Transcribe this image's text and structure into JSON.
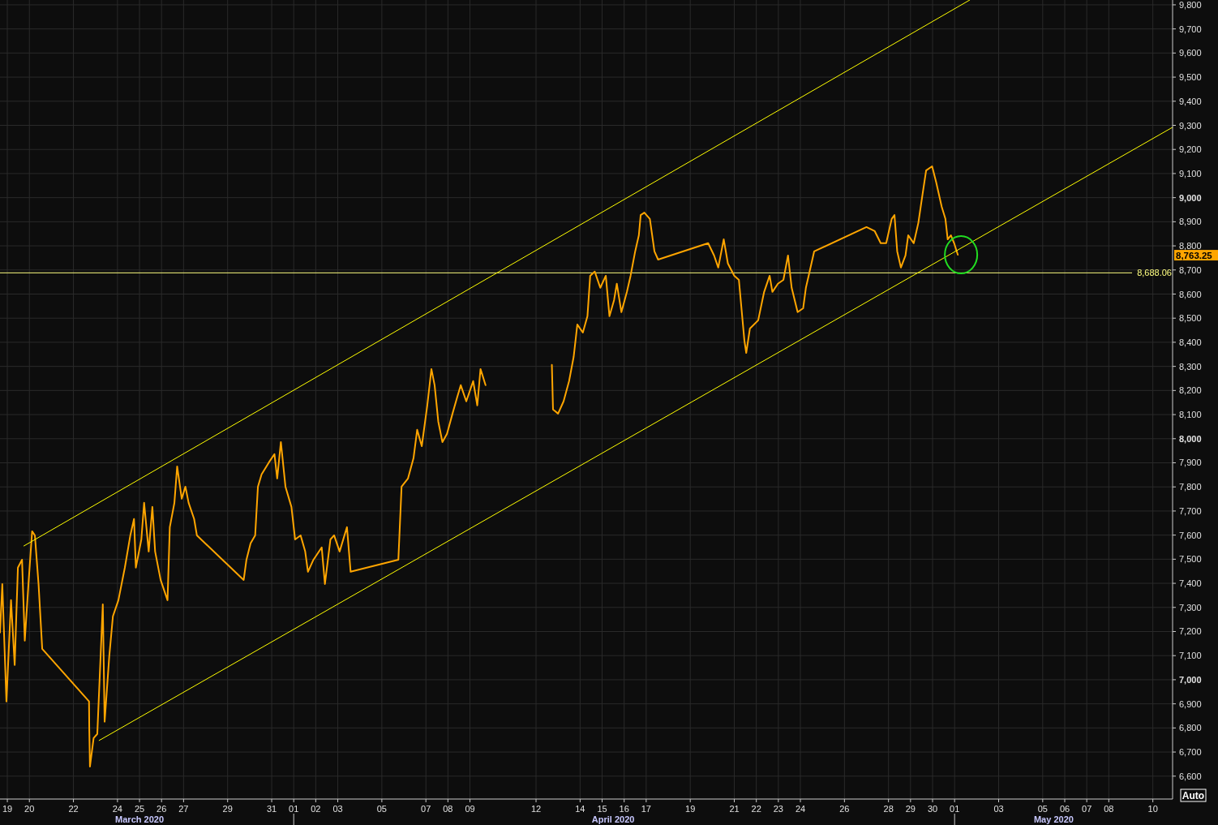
{
  "chart_data": {
    "type": "line",
    "x": [
      "2020-03-18T16:00",
      "2020-03-18T18:30",
      "2020-03-18T23:00",
      "2020-03-19T04:00",
      "2020-03-19T08:00",
      "2020-03-19T11:30",
      "2020-03-19T16:00",
      "2020-03-19T19:00",
      "2020-03-19T23:00",
      "2020-03-20T03:00",
      "2020-03-20T06:00",
      "2020-03-20T10:00",
      "2020-03-20T14:00",
      "2020-03-22T17:00",
      "2020-03-22T17:15",
      "2020-03-22T18:00",
      "2020-03-22T22:00",
      "2020-03-23T02:00",
      "2020-03-23T08:00",
      "2020-03-23T10:00",
      "2020-03-23T15:00",
      "2020-03-23T19:00",
      "2020-03-24T01:00",
      "2020-03-24T08:00",
      "2020-03-24T14:00",
      "2020-03-24T18:00",
      "2020-03-24T20:00",
      "2020-03-25T02:00",
      "2020-03-25T05:00",
      "2020-03-25T10:00",
      "2020-03-25T14:00",
      "2020-03-25T17:00",
      "2020-03-25T23:00",
      "2020-03-26T06:30",
      "2020-03-26T09:00",
      "2020-03-26T14:00",
      "2020-03-26T17:00",
      "2020-03-26T22:00",
      "2020-03-27T02:00",
      "2020-03-27T05:30",
      "2020-03-27T11:30",
      "2020-03-27T14:30",
      "2020-03-29T17:30",
      "2020-03-29T20:30",
      "2020-03-30T01:00",
      "2020-03-30T06:00",
      "2020-03-30T09:00",
      "2020-03-30T13:00",
      "2020-03-30T21:00",
      "2020-03-31T03:00",
      "2020-03-31T06:00",
      "2020-03-31T10:00",
      "2020-03-31T15:00",
      "2020-03-31T21:30",
      "2020-04-01T01:30",
      "2020-04-01T07:30",
      "2020-04-01T12:30",
      "2020-04-01T15:30",
      "2020-04-01T21:30",
      "2020-04-02T06:30",
      "2020-04-02T10:00",
      "2020-04-02T16:00",
      "2020-04-02T20:00",
      "2020-04-03T02:00",
      "2020-04-03T10:00",
      "2020-04-03T14:00",
      "2020-04-05T18:00",
      "2020-04-05T21:30",
      "2020-04-06T04:30",
      "2020-04-06T10:30",
      "2020-04-06T14:30",
      "2020-04-06T19:30",
      "2020-04-07T01:30",
      "2020-04-07T06:00",
      "2020-04-07T09:30",
      "2020-04-07T13:30",
      "2020-04-07T18:00",
      "2020-04-07T23:00",
      "2020-04-08T05:00",
      "2020-04-08T10:00",
      "2020-04-08T14:00",
      "2020-04-08T20:00",
      "2020-04-09T03:30",
      "2020-04-09T08:00",
      "2020-04-09T11:30",
      "2020-04-09T17:00",
      "2020-04-10T01:00",
      "2020-04-12T17:15",
      "2020-04-12T18:30",
      "2020-04-13T00:00",
      "2020-04-13T06:00",
      "2020-04-13T12:00",
      "2020-04-13T17:00",
      "2020-04-13T21:00",
      "2020-04-14T03:00",
      "2020-04-14T08:00",
      "2020-04-14T11:00",
      "2020-04-14T16:00",
      "2020-04-14T22:00",
      "2020-04-15T04:00",
      "2020-04-15T08:00",
      "2020-04-15T13:00",
      "2020-04-15T16:00",
      "2020-04-15T21:00",
      "2020-04-16T03:00",
      "2020-04-16T07:00",
      "2020-04-16T12:00",
      "2020-04-16T16:00",
      "2020-04-16T18:00",
      "2020-04-16T22:00",
      "2020-04-17T04:00",
      "2020-04-17T09:00",
      "2020-04-17T13:00",
      "2020-04-19T19:30",
      "2020-04-20T02:00",
      "2020-04-20T06:30",
      "2020-04-20T12:30",
      "2020-04-20T17:00",
      "2020-04-21T00:00",
      "2020-04-21T05:00",
      "2020-04-21T11:00",
      "2020-04-21T13:00",
      "2020-04-21T17:00",
      "2020-04-22T02:00",
      "2020-04-22T08:30",
      "2020-04-22T14:30",
      "2020-04-22T17:30",
      "2020-04-22T23:30",
      "2020-04-23T05:30",
      "2020-04-23T10:30",
      "2020-04-23T14:30",
      "2020-04-23T21:00",
      "2020-04-24T03:00",
      "2020-04-24T06:00",
      "2020-04-24T09:00",
      "2020-04-24T15:00",
      "2020-04-27T00:00",
      "2020-04-27T09:00",
      "2020-04-27T15:30",
      "2020-04-27T21:30",
      "2020-04-28T03:30",
      "2020-04-28T06:30",
      "2020-04-28T09:30",
      "2020-04-28T13:30",
      "2020-04-28T18:30",
      "2020-04-28T21:30",
      "2020-04-29T03:30",
      "2020-04-29T08:30",
      "2020-04-29T13:00",
      "2020-04-29T17:00",
      "2020-04-29T23:30",
      "2020-04-30T04:00",
      "2020-04-30T10:00",
      "2020-04-30T14:00",
      "2020-04-30T16:30",
      "2020-04-30T20:00",
      "2020-04-30T23:30",
      "2020-05-01T03:30"
    ],
    "series": [
      {
        "color": "#ffa500",
        "values": [
          7196,
          7397,
          6910,
          7330,
          7061,
          7465,
          7498,
          7162,
          7397,
          7616,
          7599,
          7397,
          7128,
          6910,
          6799,
          6640,
          6758,
          6775,
          7313,
          6826,
          7095,
          7263,
          7330,
          7465,
          7599,
          7667,
          7465,
          7582,
          7734,
          7532,
          7717,
          7532,
          7414,
          7330,
          7633,
          7734,
          7885,
          7751,
          7801,
          7734,
          7667,
          7599,
          7414,
          7498,
          7566,
          7599,
          7801,
          7852,
          7902,
          7936,
          7835,
          7986,
          7801,
          7717,
          7582,
          7599,
          7532,
          7448,
          7498,
          7549,
          7397,
          7582,
          7599,
          7532,
          7633,
          7448,
          7498,
          7801,
          7835,
          7919,
          8037,
          7969,
          8138,
          8289,
          8222,
          8071,
          7986,
          8020,
          8104,
          8171,
          8222,
          8155,
          8239,
          8138,
          8289,
          8222,
          null,
          8306,
          8121,
          8104,
          8155,
          8239,
          8340,
          8474,
          8440,
          8508,
          8676,
          8693,
          8626,
          8676,
          8508,
          8575,
          8643,
          8525,
          8609,
          8676,
          8777,
          8844,
          8928,
          8938,
          8912,
          8777,
          8743,
          8811,
          8760,
          8710,
          8827,
          8727,
          8676,
          8659,
          8407,
          8356,
          8457,
          8491,
          8609,
          8676,
          8609,
          8643,
          8659,
          8760,
          8626,
          8525,
          8541,
          8626,
          8676,
          8777,
          8878,
          8861,
          8811,
          8811,
          8912,
          8928,
          8777,
          8710,
          8760,
          8844,
          8811,
          8895,
          9012,
          9113,
          9130,
          9063,
          8962,
          8912,
          8827,
          8844,
          8811,
          8763
        ]
      },
      {
        "type": "line",
        "color": "#ffff00",
        "x": [
          "2020-03-19T18:00",
          "2020-05-01T16:30"
        ],
        "values": [
          7555,
          9820
        ]
      },
      {
        "type": "line",
        "color": "#ffff00",
        "x": [
          "2020-03-23T04:00",
          "2020-05-10T21:30"
        ],
        "values": [
          6748,
          9292
        ]
      }
    ],
    "xlim": [
      "2020-03-18T16:00",
      "2020-05-10T21:30"
    ],
    "xticks": [
      {
        "value": "2020-03-19",
        "label": "19"
      },
      {
        "value": "2020-03-20",
        "label": "20"
      },
      {
        "value": "2020-03-22",
        "label": "22"
      },
      {
        "value": "2020-03-24",
        "label": "24"
      },
      {
        "value": "2020-03-25",
        "label": "25"
      },
      {
        "value": "2020-03-26",
        "label": "26"
      },
      {
        "value": "2020-03-27",
        "label": "27"
      },
      {
        "value": "2020-03-29",
        "label": "29"
      },
      {
        "value": "2020-03-31",
        "label": "31"
      },
      {
        "value": "2020-04-01",
        "label": "01"
      },
      {
        "value": "2020-04-02",
        "label": "02"
      },
      {
        "value": "2020-04-03",
        "label": "03"
      },
      {
        "value": "2020-04-05",
        "label": "05"
      },
      {
        "value": "2020-04-07",
        "label": "07"
      },
      {
        "value": "2020-04-08",
        "label": "08"
      },
      {
        "value": "2020-04-09",
        "label": "09"
      },
      {
        "value": "2020-04-12",
        "label": "12"
      },
      {
        "value": "2020-04-14",
        "label": "14"
      },
      {
        "value": "2020-04-15",
        "label": "15"
      },
      {
        "value": "2020-04-16",
        "label": "16"
      },
      {
        "value": "2020-04-17",
        "label": "17"
      },
      {
        "value": "2020-04-19",
        "label": "19"
      },
      {
        "value": "2020-04-21",
        "label": "21"
      },
      {
        "value": "2020-04-22",
        "label": "22"
      },
      {
        "value": "2020-04-23",
        "label": "23"
      },
      {
        "value": "2020-04-24",
        "label": "24"
      },
      {
        "value": "2020-04-26",
        "label": "26"
      },
      {
        "value": "2020-04-28",
        "label": "28"
      },
      {
        "value": "2020-04-29",
        "label": "29"
      },
      {
        "value": "2020-04-30",
        "label": "30"
      },
      {
        "value": "2020-05-01",
        "label": "01"
      },
      {
        "value": "2020-05-03",
        "label": "03"
      },
      {
        "value": "2020-05-05",
        "label": "05"
      },
      {
        "value": "2020-05-06",
        "label": "06"
      },
      {
        "value": "2020-05-07",
        "label": "07"
      },
      {
        "value": "2020-05-08",
        "label": "08"
      },
      {
        "value": "2020-05-10",
        "label": "10"
      }
    ],
    "ylim": [
      6505,
      9820
    ],
    "yticks": [
      {
        "value": 6600,
        "label": "6,600"
      },
      {
        "value": 6700,
        "label": "6,700"
      },
      {
        "value": 6800,
        "label": "6,800"
      },
      {
        "value": 6900,
        "label": "6,900"
      },
      {
        "value": 7000,
        "label": "7,000"
      },
      {
        "value": 7100,
        "label": "7,100"
      },
      {
        "value": 7200,
        "label": "7,200"
      },
      {
        "value": 7300,
        "label": "7,300"
      },
      {
        "value": 7400,
        "label": "7,400"
      },
      {
        "value": 7500,
        "label": "7,500"
      },
      {
        "value": 7600,
        "label": "7,600"
      },
      {
        "value": 7700,
        "label": "7,700"
      },
      {
        "value": 7800,
        "label": "7,800"
      },
      {
        "value": 7900,
        "label": "7,900"
      },
      {
        "value": 8000,
        "label": "8,000"
      },
      {
        "value": 8100,
        "label": "8,100"
      },
      {
        "value": 8200,
        "label": "8,200"
      },
      {
        "value": 8300,
        "label": "8,300"
      },
      {
        "value": 8400,
        "label": "8,400"
      },
      {
        "value": 8500,
        "label": "8,500"
      },
      {
        "value": 8600,
        "label": "8,600"
      },
      {
        "value": 8700,
        "label": "8,700"
      },
      {
        "value": 8800,
        "label": "8,800"
      },
      {
        "value": 8900,
        "label": "8,900"
      },
      {
        "value": 9000,
        "label": "9,000"
      },
      {
        "value": 9100,
        "label": "9,100"
      },
      {
        "value": 9200,
        "label": "9,200"
      },
      {
        "value": 9300,
        "label": "9,300"
      },
      {
        "value": 9400,
        "label": "9,400"
      },
      {
        "value": 9500,
        "label": "9,500"
      },
      {
        "value": 9600,
        "label": "9,600"
      },
      {
        "value": 9700,
        "label": "9,700"
      },
      {
        "value": 9800,
        "label": "9,800"
      }
    ],
    "ref_lines": [
      {
        "axis": "y",
        "value": 8688.06,
        "label": "8,688.06",
        "color": "#ffff80"
      }
    ],
    "annotations": [
      "8,763.25",
      "March 2020",
      "April 2020",
      "May 2020",
      "Auto"
    ],
    "grid": true
  }
}
